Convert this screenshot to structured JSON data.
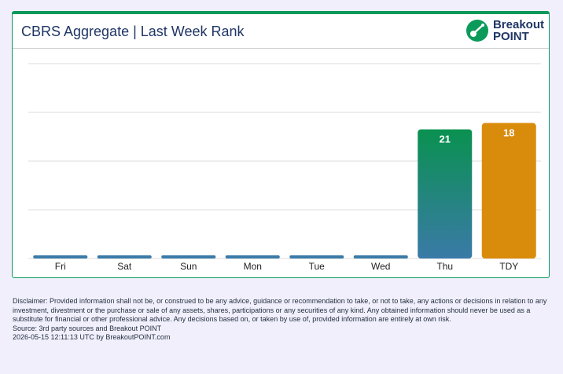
{
  "header": {
    "title": "CBRS Aggregate | Last Week Rank",
    "logo_line1": "Breakout",
    "logo_line2": "POINT",
    "logo_icon": "breakout-point-logo-icon"
  },
  "chart_data": {
    "type": "bar",
    "categories": [
      "Fri",
      "Sat",
      "Sun",
      "Mon",
      "Tue",
      "Wed",
      "Thu",
      "TDY"
    ],
    "values": [
      null,
      null,
      null,
      null,
      null,
      null,
      21,
      18
    ],
    "data_labels": [
      "",
      "",
      "",
      "",
      "",
      "",
      "21",
      "18"
    ],
    "rank_scale_note": "lower rank draws taller bar",
    "ylim": [
      0,
      100
    ],
    "grid": true,
    "colors": {
      "default": "#3a7aa7",
      "thu_top": "#0a9150",
      "thu_bottom": "#3a7aa7",
      "tdy": "#d98b0c"
    }
  },
  "footer": {
    "disclaimer": "Disclaimer: Provided information shall not be, or construed to be any advice, guidance or recommendation to take, or not to take, any actions or decisions in relation to any investment, divestment or the purchase or sale of any assets, shares, participations or any securities of any kind. Any obtained information should never be used as a substitute for financial or other professional advice. Any decisions based on, or taken by use of, provided information are entirely at own risk.",
    "source": "Source: 3rd party sources and Breakout POINT",
    "timestamp": "2026-05-15 12:11:13 UTC by BreakoutPOINT.com"
  }
}
